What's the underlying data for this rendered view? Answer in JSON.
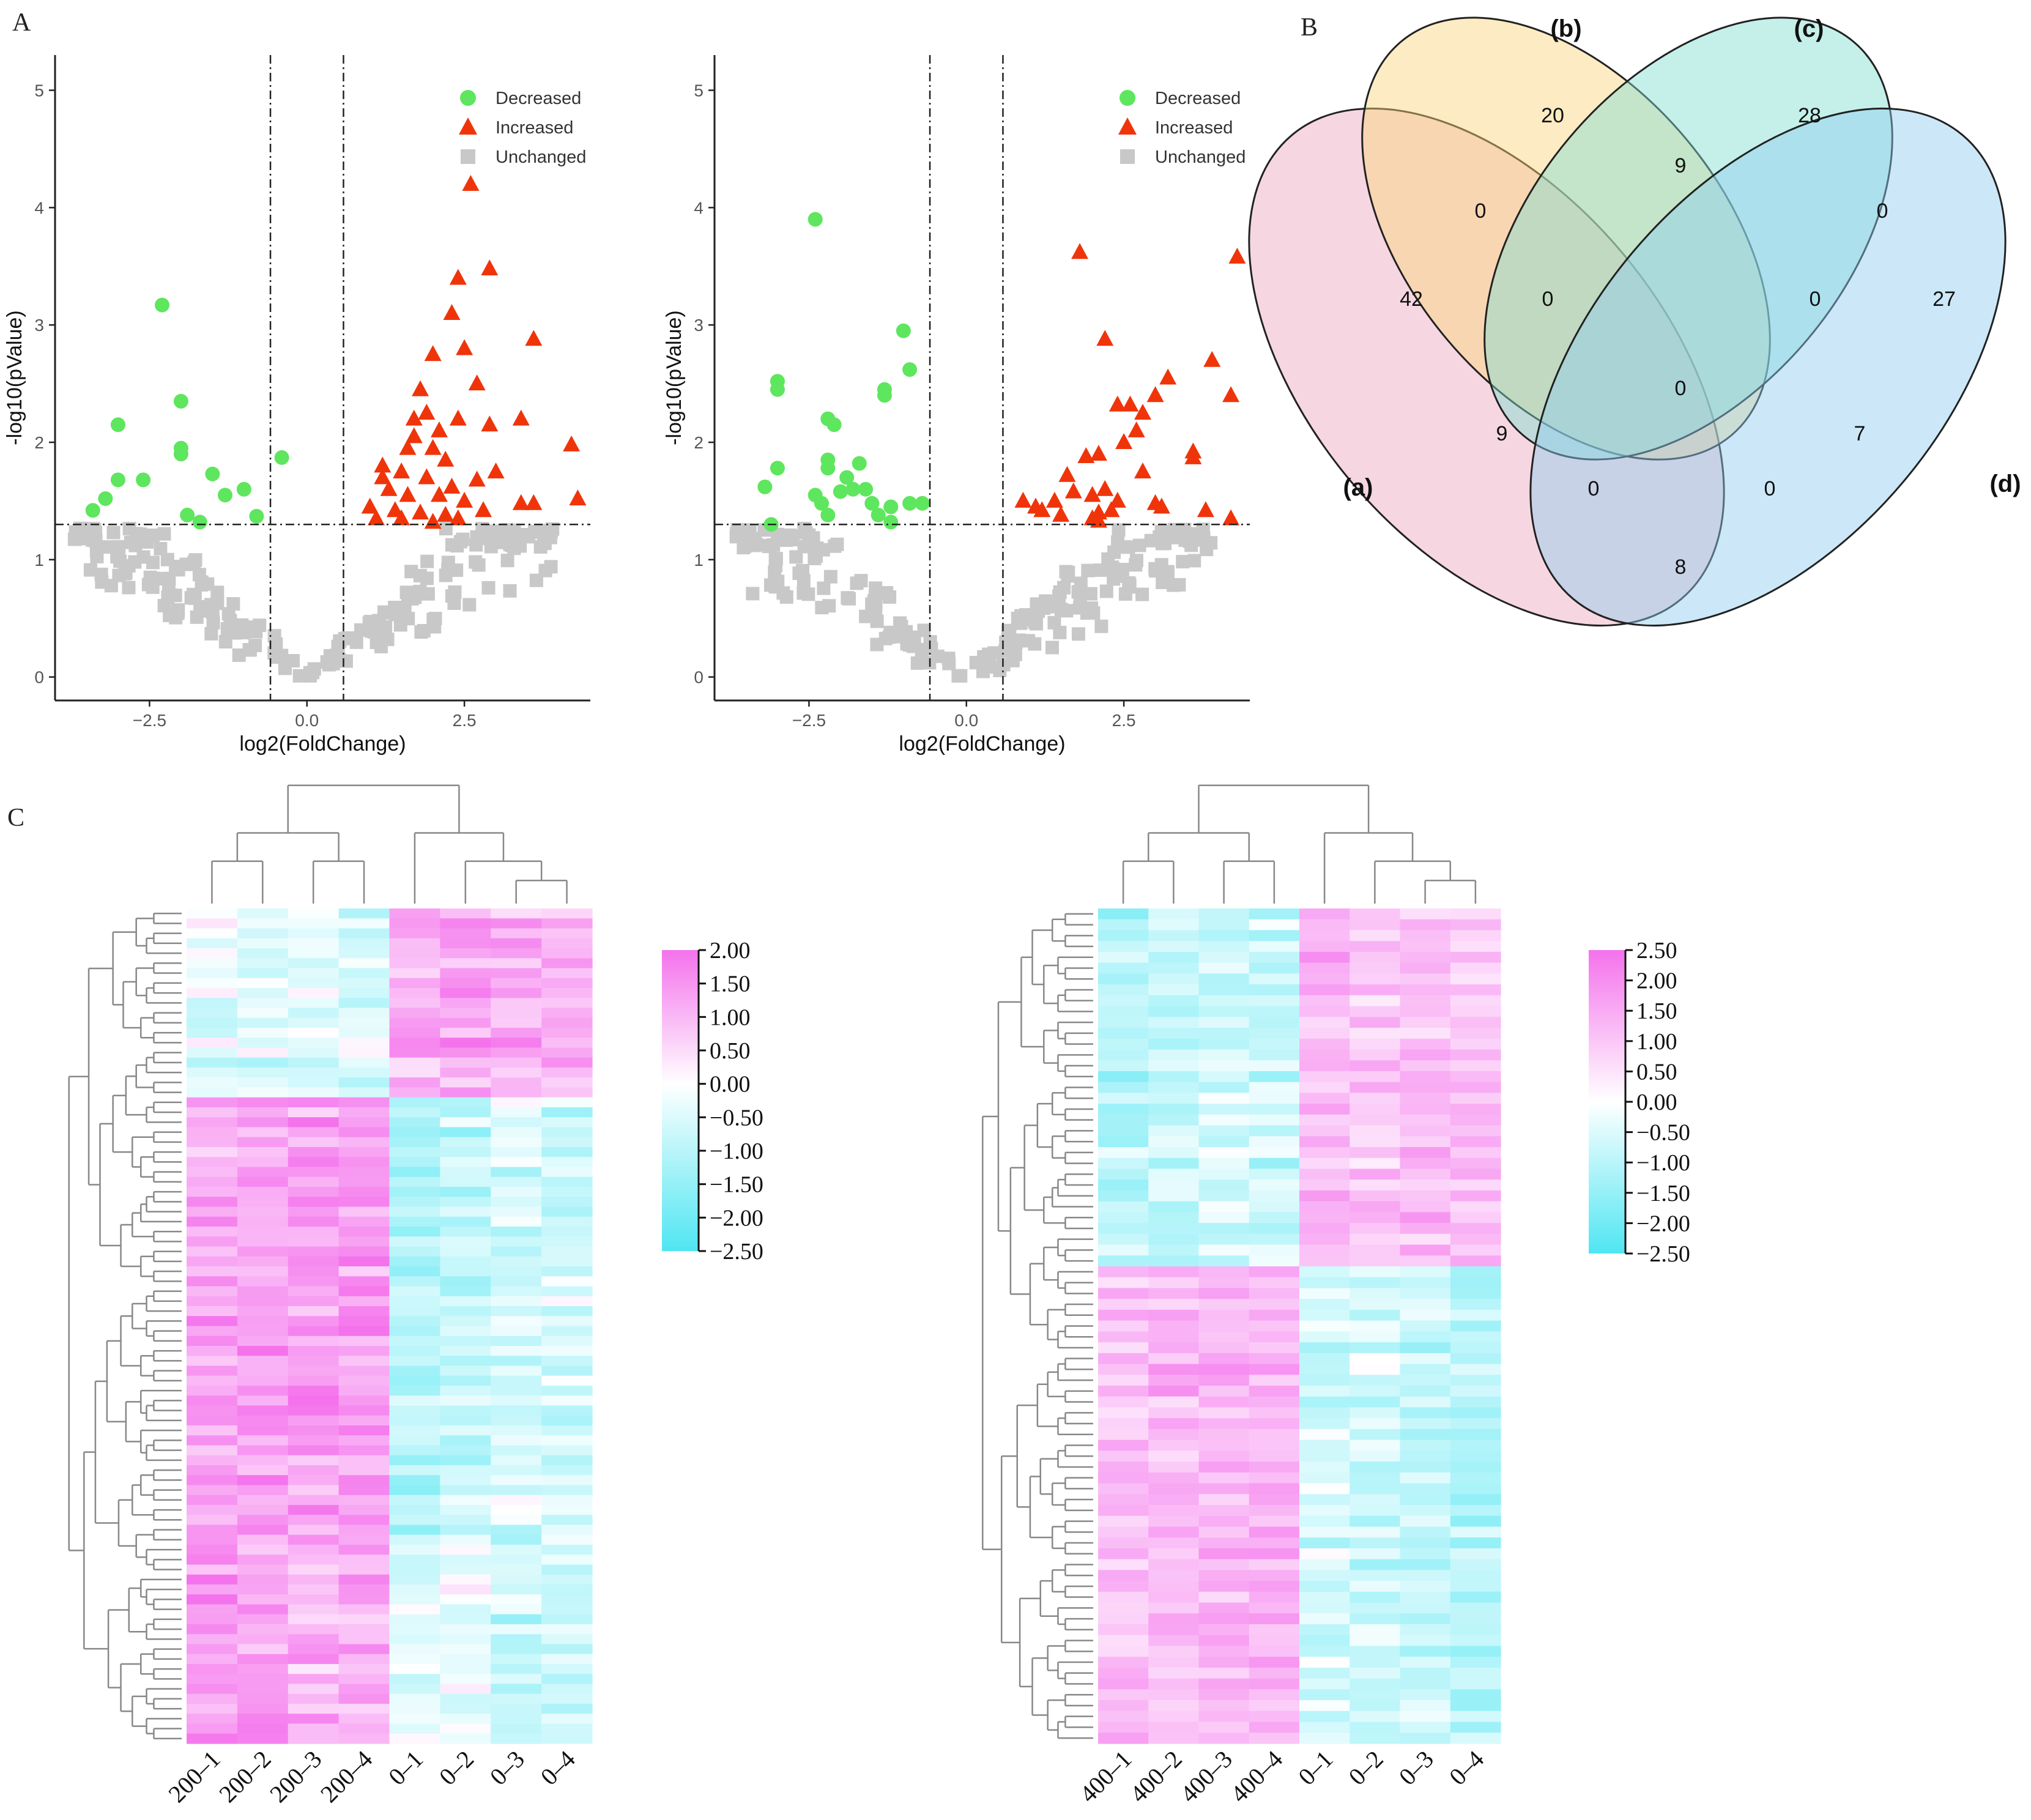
{
  "panels": {
    "a_label": "A",
    "b_label": "B",
    "c_label": "C"
  },
  "colors": {
    "decreased": "#5ee65e",
    "increased": "#f0340a",
    "unchanged": "#c8c8c8",
    "heat_low": "#4fe6f2",
    "heat_mid": "#ffffff",
    "heat_high": "#f472ec",
    "venn_a": "#eaa6bd",
    "venn_b": "#fbd47a",
    "venn_c": "#7fddd0",
    "venn_d": "#8ecdf0"
  },
  "chart_data": [
    {
      "type": "scatter",
      "id": "volcano-1",
      "xlabel": "log2(FoldChange)",
      "ylabel": "-log10(pValue)",
      "xlim": [
        -4.0,
        4.5
      ],
      "ylim": [
        -0.2,
        5.3
      ],
      "xticks": [
        -2.5,
        0.0,
        2.5
      ],
      "xtick_labels": [
        "−2.5",
        "0.0",
        "2.5"
      ],
      "yticks": [
        0,
        1,
        2,
        3,
        4,
        5
      ],
      "ytick_labels": [
        "0",
        "1",
        "2",
        "3",
        "4",
        "5"
      ],
      "vlines": [
        -0.58,
        0.58
      ],
      "hline": 1.3,
      "legend": [
        "Decreased",
        "Increased",
        "Unchanged"
      ],
      "seed": 11,
      "n_unchanged": 220,
      "series": [
        {
          "name": "Decreased",
          "points": [
            [
              -2.3,
              3.17
            ],
            [
              -2.0,
              2.35
            ],
            [
              -3.0,
              2.15
            ],
            [
              -2.0,
              1.95
            ],
            [
              -1.5,
              1.73
            ],
            [
              -2.6,
              1.68
            ],
            [
              -3.0,
              1.68
            ],
            [
              -3.2,
              1.52
            ],
            [
              -3.4,
              1.42
            ],
            [
              -1.9,
              1.38
            ],
            [
              -1.7,
              1.32
            ],
            [
              -1.3,
              1.55
            ],
            [
              -0.8,
              1.37
            ],
            [
              -1.0,
              1.6
            ],
            [
              -0.4,
              1.87
            ],
            [
              -2.0,
              1.9
            ]
          ]
        },
        {
          "name": "Increased",
          "points": [
            [
              2.6,
              4.2
            ],
            [
              2.4,
              3.4
            ],
            [
              2.9,
              3.48
            ],
            [
              2.3,
              3.1
            ],
            [
              3.6,
              2.88
            ],
            [
              2.5,
              2.8
            ],
            [
              2.0,
              2.75
            ],
            [
              1.8,
              2.45
            ],
            [
              2.7,
              2.5
            ],
            [
              1.7,
              2.2
            ],
            [
              1.9,
              2.25
            ],
            [
              2.1,
              2.1
            ],
            [
              2.4,
              2.2
            ],
            [
              2.9,
              2.15
            ],
            [
              3.4,
              2.2
            ],
            [
              1.6,
              1.95
            ],
            [
              2.0,
              1.95
            ],
            [
              1.2,
              1.8
            ],
            [
              1.5,
              1.75
            ],
            [
              1.9,
              1.7
            ],
            [
              2.3,
              1.62
            ],
            [
              2.7,
              1.68
            ],
            [
              3.0,
              1.75
            ],
            [
              4.2,
              1.98
            ],
            [
              1.3,
              1.6
            ],
            [
              1.6,
              1.55
            ],
            [
              2.1,
              1.55
            ],
            [
              2.5,
              1.5
            ],
            [
              1.0,
              1.45
            ],
            [
              1.4,
              1.42
            ],
            [
              1.8,
              1.4
            ],
            [
              2.2,
              1.38
            ],
            [
              2.8,
              1.42
            ],
            [
              3.4,
              1.48
            ],
            [
              3.6,
              1.48
            ],
            [
              4.3,
              1.52
            ],
            [
              1.1,
              1.35
            ],
            [
              1.5,
              1.35
            ],
            [
              2.0,
              1.32
            ],
            [
              2.4,
              1.35
            ],
            [
              1.2,
              1.7
            ],
            [
              2.2,
              1.85
            ],
            [
              1.7,
              2.05
            ]
          ]
        }
      ]
    },
    {
      "type": "scatter",
      "id": "volcano-2",
      "xlabel": "log2(FoldChange)",
      "ylabel": "-log10(pValue)",
      "xlim": [
        -4.0,
        4.5
      ],
      "ylim": [
        -0.2,
        5.3
      ],
      "xticks": [
        -2.5,
        0.0,
        2.5
      ],
      "xtick_labels": [
        "−2.5",
        "0.0",
        "2.5"
      ],
      "yticks": [
        0,
        1,
        2,
        3,
        4,
        5
      ],
      "ytick_labels": [
        "0",
        "1",
        "2",
        "3",
        "4",
        "5"
      ],
      "vlines": [
        -0.58,
        0.58
      ],
      "hline": 1.3,
      "legend": [
        "Decreased",
        "Increased",
        "Unchanged"
      ],
      "seed": 29,
      "n_unchanged": 200,
      "series": [
        {
          "name": "Decreased",
          "points": [
            [
              -2.4,
              3.9
            ],
            [
              -1.0,
              2.95
            ],
            [
              -0.9,
              2.62
            ],
            [
              -3.0,
              2.52
            ],
            [
              -3.0,
              2.45
            ],
            [
              -1.3,
              2.4
            ],
            [
              -1.3,
              2.45
            ],
            [
              -2.2,
              2.2
            ],
            [
              -2.1,
              2.15
            ],
            [
              -2.2,
              1.85
            ],
            [
              -2.2,
              1.78
            ],
            [
              -1.7,
              1.82
            ],
            [
              -1.9,
              1.7
            ],
            [
              -3.0,
              1.78
            ],
            [
              -1.8,
              1.6
            ],
            [
              -2.0,
              1.58
            ],
            [
              -1.6,
              1.6
            ],
            [
              -3.2,
              1.62
            ],
            [
              -2.4,
              1.55
            ],
            [
              -2.3,
              1.48
            ],
            [
              -1.5,
              1.48
            ],
            [
              -1.2,
              1.45
            ],
            [
              -0.9,
              1.48
            ],
            [
              -0.7,
              1.48
            ],
            [
              -2.2,
              1.38
            ],
            [
              -1.4,
              1.38
            ],
            [
              -1.2,
              1.32
            ],
            [
              -3.1,
              1.3
            ]
          ]
        },
        {
          "name": "Increased",
          "points": [
            [
              1.8,
              3.62
            ],
            [
              4.3,
              3.58
            ],
            [
              2.2,
              2.88
            ],
            [
              3.9,
              2.7
            ],
            [
              3.2,
              2.55
            ],
            [
              3.0,
              2.4
            ],
            [
              4.2,
              2.4
            ],
            [
              2.4,
              2.32
            ],
            [
              2.6,
              2.32
            ],
            [
              2.8,
              2.25
            ],
            [
              2.7,
              2.1
            ],
            [
              2.5,
              2.0
            ],
            [
              1.9,
              1.88
            ],
            [
              2.1,
              1.9
            ],
            [
              3.6,
              1.92
            ],
            [
              3.6,
              1.87
            ],
            [
              2.8,
              1.75
            ],
            [
              1.6,
              1.72
            ],
            [
              2.2,
              1.6
            ],
            [
              1.4,
              1.5
            ],
            [
              1.7,
              1.58
            ],
            [
              2.0,
              1.55
            ],
            [
              2.4,
              1.5
            ],
            [
              3.0,
              1.48
            ],
            [
              3.1,
              1.45
            ],
            [
              0.9,
              1.5
            ],
            [
              1.2,
              1.42
            ],
            [
              1.5,
              1.38
            ],
            [
              2.1,
              1.4
            ],
            [
              2.3,
              1.42
            ],
            [
              3.8,
              1.42
            ],
            [
              4.2,
              1.35
            ],
            [
              1.1,
              1.45
            ],
            [
              2.0,
              1.35
            ],
            [
              2.1,
              1.33
            ]
          ]
        }
      ]
    },
    {
      "type": "venn",
      "id": "venn",
      "sets": [
        "(a)",
        "(b)",
        "(c)",
        "(d)"
      ],
      "regions": {
        "a": 42,
        "b": 20,
        "c": 28,
        "d": 27,
        "ab": 0,
        "bc": 9,
        "cd": 0,
        "ac": 9,
        "bd": 7,
        "ad": 8,
        "abc": 0,
        "bcd": 0,
        "acd": 0,
        "abd": 0,
        "abcd": 0
      }
    },
    {
      "type": "heatmap",
      "id": "heatmap-1",
      "columns": [
        "200–1",
        "200–2",
        "200–3",
        "200–4",
        "0–1",
        "0–2",
        "0–3",
        "0–4"
      ],
      "row_blocks": [
        {
          "rows": 19,
          "pattern": [
            -0.4,
            -0.5,
            -0.4,
            -0.5,
            1.1,
            1.2,
            1.1,
            1.2
          ]
        },
        {
          "rows": 44,
          "pattern": [
            1.3,
            1.4,
            1.3,
            1.4,
            -1.1,
            -0.9,
            -0.5,
            -0.6
          ]
        },
        {
          "rows": 21,
          "pattern": [
            1.4,
            1.3,
            1.1,
            1.2,
            -0.3,
            -0.2,
            -0.8,
            -0.6
          ]
        }
      ],
      "seed": 7,
      "colorbar": {
        "min": -2.5,
        "max": 2.0,
        "labels": [
          "2.00",
          "1.50",
          "1.00",
          "0.50",
          "0.00",
          "−0.50",
          "−1.00",
          "−1.50",
          "−2.00",
          "−2.50"
        ]
      }
    },
    {
      "type": "heatmap",
      "id": "heatmap-2",
      "columns": [
        "400–1",
        "400–2",
        "400–3",
        "400–4",
        "0–1",
        "0–2",
        "0–3",
        "0–4"
      ],
      "row_blocks": [
        {
          "rows": 33,
          "pattern": [
            -1.0,
            -0.8,
            -0.6,
            -0.7,
            1.3,
            1.1,
            1.2,
            1.1
          ]
        },
        {
          "rows": 44,
          "pattern": [
            1.1,
            1.2,
            1.3,
            1.3,
            -0.6,
            -0.7,
            -0.8,
            -1.0
          ]
        }
      ],
      "seed": 19,
      "colorbar": {
        "min": -2.5,
        "max": 2.5,
        "labels": [
          "2.50",
          "2.00",
          "1.50",
          "1.00",
          "0.50",
          "0.00",
          "−0.50",
          "−1.00",
          "−1.50",
          "−2.00",
          "−2.50"
        ]
      }
    }
  ]
}
